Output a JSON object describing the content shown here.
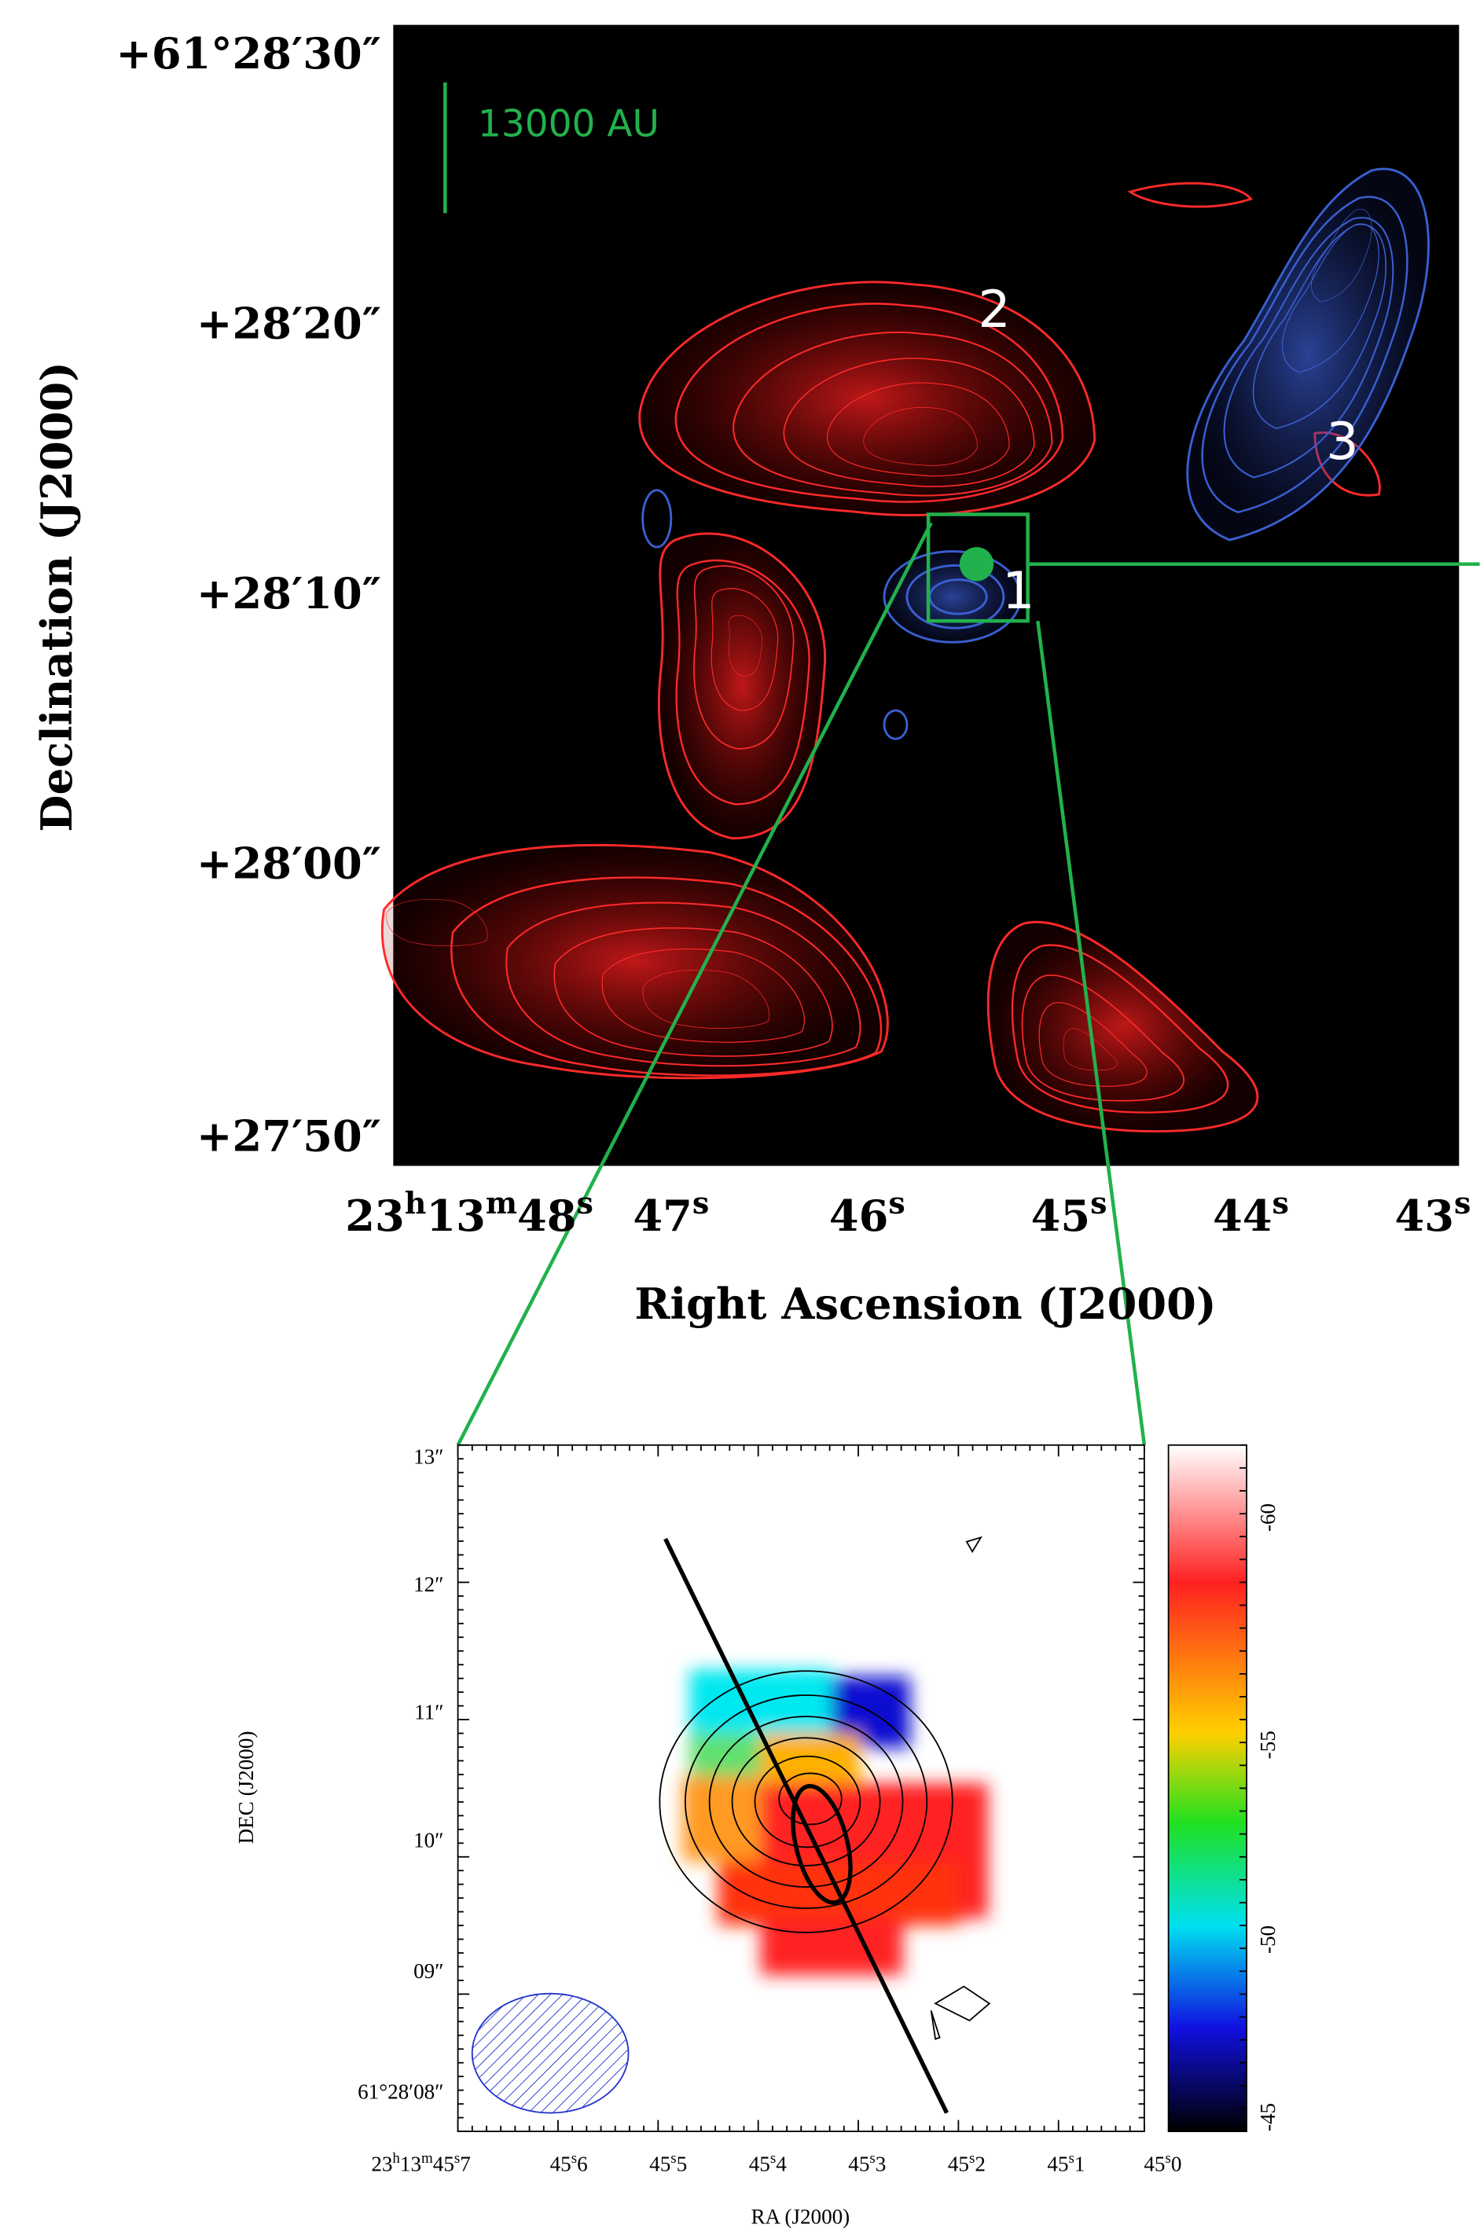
{
  "top_panel": {
    "y_axis_title": "Declination (J2000)",
    "x_axis_title": "Right Ascension (J2000)",
    "y_tick_labels": [
      "+61°28′30″",
      "+28′20″",
      "+28′10″",
      "+28′00″",
      "+27′50″"
    ],
    "x_tick_labels": [
      [
        "23",
        "h",
        "13",
        "m",
        "48",
        "s"
      ],
      [
        "47",
        "s"
      ],
      [
        "46",
        "s"
      ],
      [
        "45",
        "s"
      ],
      [
        "44",
        "s"
      ],
      [
        "43",
        "s"
      ]
    ],
    "scale_bar_label": "13000 AU",
    "source_labels": [
      "2",
      "3",
      "1"
    ]
  },
  "inset_panel": {
    "y_axis_title": "DEC (J2000)",
    "x_axis_title": "RA (J2000)",
    "y_tick_labels": [
      "13″",
      "12″",
      "11″",
      "10″",
      "09″",
      "61°28′08″"
    ],
    "x_tick_labels": [
      [
        "23",
        "h",
        "13",
        "m",
        "45",
        "s",
        "7"
      ],
      [
        "45",
        "s",
        "6"
      ],
      [
        "45",
        "s",
        "5"
      ],
      [
        "45",
        "s",
        "4"
      ],
      [
        "45",
        "s",
        "3"
      ],
      [
        "45",
        "s",
        "2"
      ],
      [
        "45",
        "s",
        "1"
      ],
      [
        "45",
        "s",
        "0"
      ]
    ],
    "colorbar_tick_labels": [
      -60,
      -55,
      -50,
      -45
    ]
  }
}
